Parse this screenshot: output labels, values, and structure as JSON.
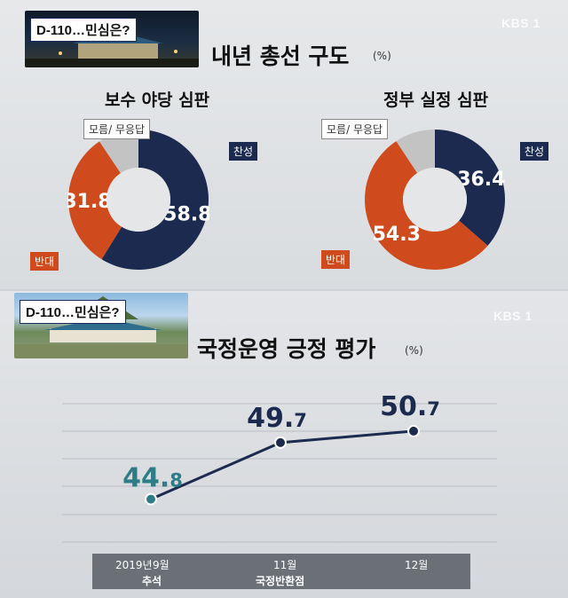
{
  "top": {
    "tag": "D-110…민심은?",
    "logo": "KBS 1",
    "title": "내년 총선 구도",
    "unit": "(%)",
    "legend_unknown": "모름/ 무응답",
    "legend_approve": "찬성",
    "legend_oppose": "반대"
  },
  "bottom": {
    "tag": "D-110…민심은?",
    "logo": "KBS 1",
    "title": "국정운영 긍정 평가",
    "unit": "(%)",
    "year_prefix": "2019년",
    "month_labels": [
      "9월",
      "11월",
      "12월"
    ],
    "event_labels": [
      "추석",
      "국정반환점"
    ]
  },
  "colors": {
    "approve": "#1b2a4e",
    "oppose": "#cf4a1c",
    "unknown": "#c3c3c3",
    "line": "#1b2a4e",
    "first_point": "#2e7d86"
  },
  "chart_data": [
    {
      "type": "pie",
      "title": "보수 야당 심판",
      "labels": [
        "찬성",
        "반대",
        "모름/ 무응답"
      ],
      "values": [
        58.8,
        31.8,
        9.4
      ],
      "display": [
        "58.8",
        "31.8",
        ""
      ]
    },
    {
      "type": "pie",
      "title": "정부 실정 심판",
      "labels": [
        "찬성",
        "반대",
        "모름/ 무응답"
      ],
      "values": [
        36.4,
        54.3,
        9.3
      ],
      "display": [
        "36.4",
        "54.3",
        ""
      ]
    },
    {
      "type": "line",
      "title": "국정운영 긍정 평가",
      "x": [
        "9월",
        "11월",
        "12월"
      ],
      "series": [
        {
          "values": [
            44.8,
            49.7,
            50.7
          ],
          "labels": [
            "44.8",
            "49.7",
            "50.7"
          ]
        }
      ],
      "ylim": [
        40,
        55
      ],
      "grid": true
    }
  ]
}
